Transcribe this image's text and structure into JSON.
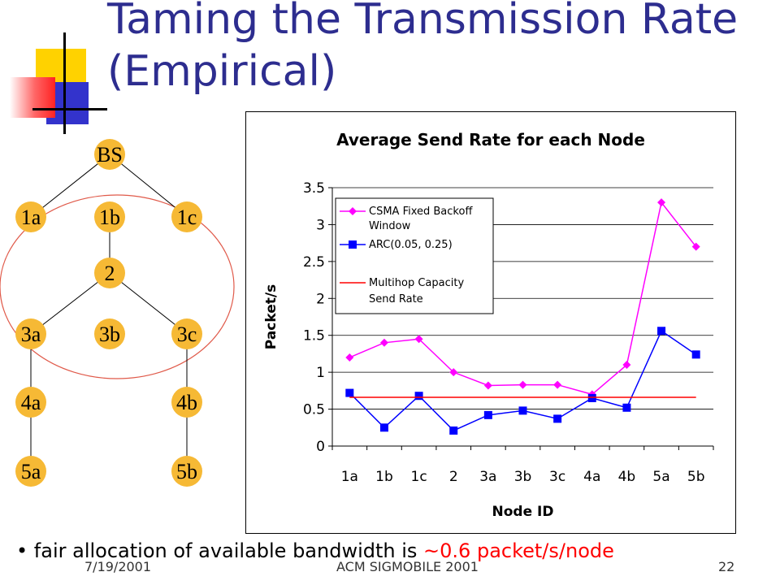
{
  "slide": {
    "title_line1": "Taming the Transmission Rate",
    "title_line2": "(Empirical)",
    "bullet_text": "fair allocation of available bandwidth is ",
    "bullet_highlight": "~0.6 packet/s/node",
    "footer_date": "7/19/2001",
    "footer_conf": "ACM SIGMOBILE 2001",
    "footer_page": "22",
    "colors": {
      "title": "#2d2d8f",
      "node_fill": "#f6b935",
      "highlight": "#ff0000"
    }
  },
  "tree": {
    "nodes": [
      {
        "label": "BS"
      },
      {
        "label": "1a"
      },
      {
        "label": "1b"
      },
      {
        "label": "1c"
      },
      {
        "label": "2"
      },
      {
        "label": "3a"
      },
      {
        "label": "3b"
      },
      {
        "label": "3c"
      },
      {
        "label": "4a"
      },
      {
        "label": "4b"
      },
      {
        "label": "5a"
      },
      {
        "label": "5b"
      }
    ]
  },
  "chart_data": {
    "type": "line",
    "title": "Average Send Rate for each Node",
    "xlabel": "Node ID",
    "ylabel": "Packet/s",
    "categories": [
      "1a",
      "1b",
      "1c",
      "2",
      "3a",
      "3b",
      "3c",
      "4a",
      "4b",
      "5a",
      "5b"
    ],
    "ylim": [
      0,
      3.5
    ],
    "yticks": [
      "0",
      "0.5",
      "1",
      "1.5",
      "2",
      "2.5",
      "3",
      "3.5"
    ],
    "grid": true,
    "legend_position": "top-left",
    "series": [
      {
        "name": "CSMA Fixed Backoff Window",
        "color": "#ff00ff",
        "marker": "diamond",
        "values": [
          1.2,
          1.4,
          1.45,
          1.0,
          0.82,
          0.83,
          0.83,
          0.7,
          1.1,
          3.3,
          2.7
        ]
      },
      {
        "name": "ARC(0.05, 0.25)",
        "color": "#0000ff",
        "marker": "square",
        "values": [
          0.72,
          0.25,
          0.68,
          0.21,
          0.42,
          0.48,
          0.37,
          0.65,
          0.52,
          1.56,
          1.24
        ]
      },
      {
        "name": "Multihop Capacity Send Rate",
        "color": "#ff0000",
        "marker": "none",
        "values": [
          0.66,
          0.66,
          0.66,
          0.66,
          0.66,
          0.66,
          0.66,
          0.66,
          0.66,
          0.66,
          0.66
        ]
      }
    ],
    "legend_lines": [
      [
        "CSMA Fixed Backoff",
        "Window"
      ],
      [
        "ARC(0.05, 0.25)"
      ],
      [
        "Multihop Capacity",
        "Send Rate"
      ]
    ]
  }
}
